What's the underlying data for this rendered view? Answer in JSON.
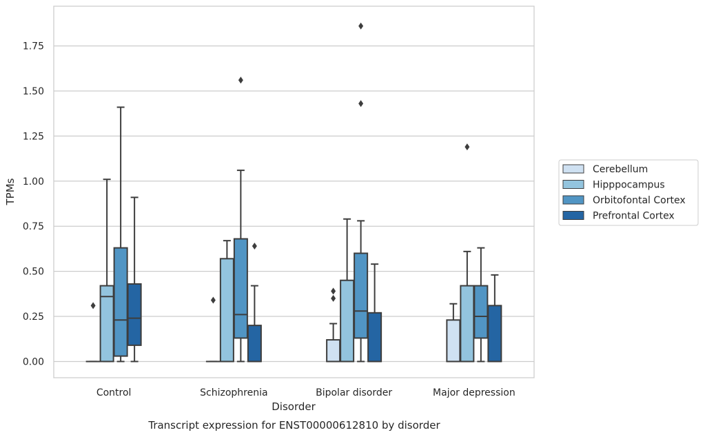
{
  "chart_data": {
    "type": "box",
    "caption": "Transcript expression for ENST00000612810 by disorder",
    "xlabel": "Disorder",
    "ylabel": "TPMs",
    "ylim": [
      -0.09,
      1.97
    ],
    "yticks": [
      0.0,
      0.25,
      0.5,
      0.75,
      1.0,
      1.25,
      1.5,
      1.75
    ],
    "ytick_labels": [
      "0.00",
      "0.25",
      "0.50",
      "0.75",
      "1.00",
      "1.25",
      "1.50",
      "1.75"
    ],
    "grid": "horizontal",
    "legend_position": "right",
    "categories": [
      "Control",
      "Schizophrenia",
      "Bipolar disorder",
      "Major depression"
    ],
    "series": [
      {
        "name": "Cerebellum",
        "color": "#cfe1f2",
        "boxes": [
          {
            "whislo": 0.0,
            "q1": 0.0,
            "med": 0.0,
            "q3": 0.0,
            "whishi": 0.0,
            "fliers": [
              0.31
            ]
          },
          {
            "whislo": 0.0,
            "q1": 0.0,
            "med": 0.0,
            "q3": 0.0,
            "whishi": 0.0,
            "fliers": [
              0.34
            ]
          },
          {
            "whislo": 0.0,
            "q1": 0.0,
            "med": 0.0,
            "q3": 0.12,
            "whishi": 0.21,
            "fliers": [
              0.35,
              0.39
            ]
          },
          {
            "whislo": 0.0,
            "q1": 0.0,
            "med": 0.0,
            "q3": 0.23,
            "whishi": 0.32,
            "fliers": []
          }
        ]
      },
      {
        "name": "Hipppocampus",
        "color": "#93c4de",
        "boxes": [
          {
            "whislo": 0.0,
            "q1": 0.0,
            "med": 0.36,
            "q3": 0.42,
            "whishi": 1.01,
            "fliers": []
          },
          {
            "whislo": 0.0,
            "q1": 0.0,
            "med": 0.0,
            "q3": 0.57,
            "whishi": 0.67,
            "fliers": []
          },
          {
            "whislo": 0.0,
            "q1": 0.0,
            "med": 0.0,
            "q3": 0.45,
            "whishi": 0.79,
            "fliers": []
          },
          {
            "whislo": 0.0,
            "q1": 0.0,
            "med": 0.0,
            "q3": 0.42,
            "whishi": 0.61,
            "fliers": [
              1.19
            ]
          }
        ]
      },
      {
        "name": "Orbitofontal Cortex",
        "color": "#5195c4",
        "boxes": [
          {
            "whislo": 0.0,
            "q1": 0.03,
            "med": 0.23,
            "q3": 0.63,
            "whishi": 1.41,
            "fliers": []
          },
          {
            "whislo": 0.0,
            "q1": 0.13,
            "med": 0.26,
            "q3": 0.68,
            "whishi": 1.06,
            "fliers": [
              1.56
            ]
          },
          {
            "whislo": 0.0,
            "q1": 0.13,
            "med": 0.28,
            "q3": 0.6,
            "whishi": 0.78,
            "fliers": [
              1.43,
              1.86
            ]
          },
          {
            "whislo": 0.0,
            "q1": 0.13,
            "med": 0.25,
            "q3": 0.42,
            "whishi": 0.63,
            "fliers": []
          }
        ]
      },
      {
        "name": "Prefrontal Cortex",
        "color": "#2465a3",
        "boxes": [
          {
            "whislo": 0.0,
            "q1": 0.09,
            "med": 0.24,
            "q3": 0.43,
            "whishi": 0.91,
            "fliers": []
          },
          {
            "whislo": 0.0,
            "q1": 0.0,
            "med": 0.0,
            "q3": 0.2,
            "whishi": 0.42,
            "fliers": [
              0.64
            ]
          },
          {
            "whislo": 0.0,
            "q1": 0.0,
            "med": 0.0,
            "q3": 0.27,
            "whishi": 0.54,
            "fliers": []
          },
          {
            "whislo": 0.0,
            "q1": 0.0,
            "med": 0.0,
            "q3": 0.31,
            "whishi": 0.48,
            "fliers": []
          }
        ]
      }
    ]
  }
}
